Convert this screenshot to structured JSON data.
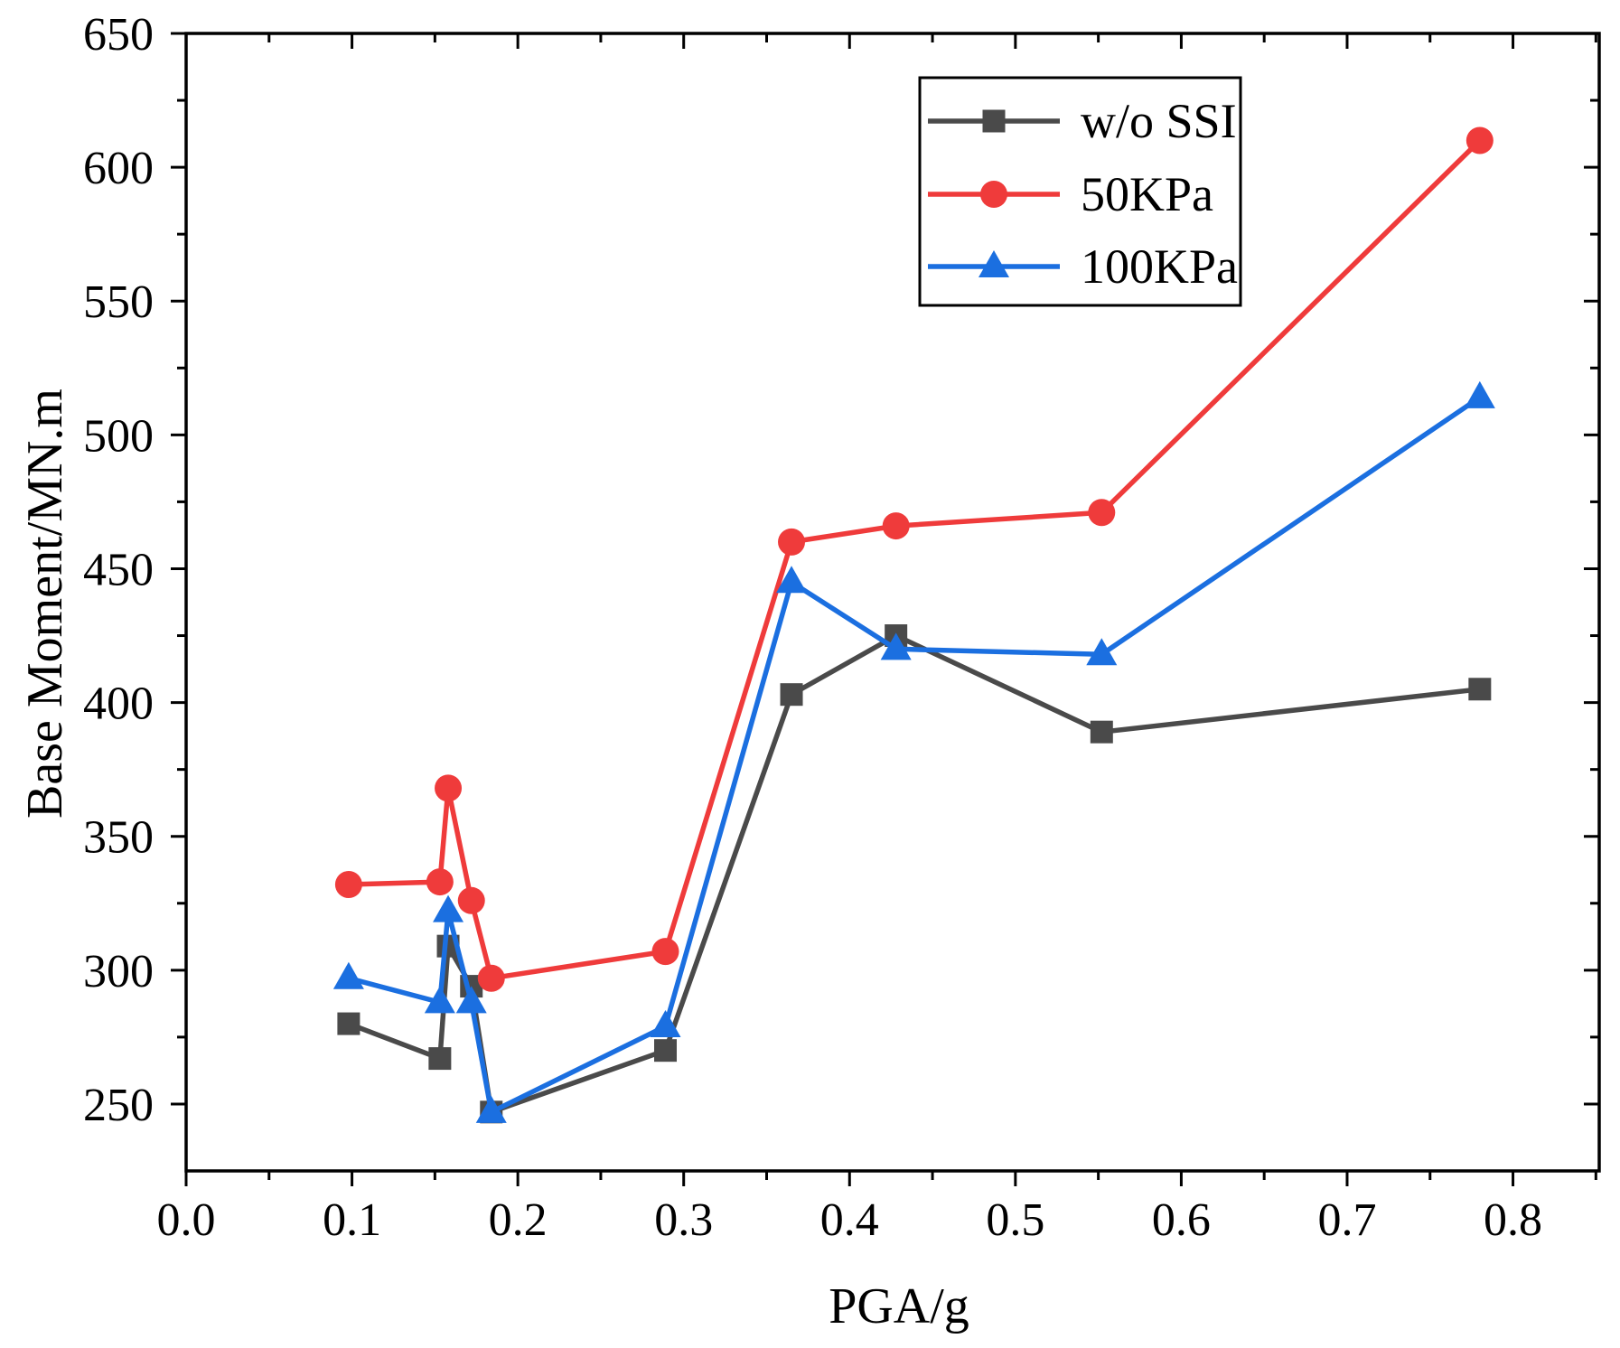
{
  "chart_data": {
    "type": "line",
    "xlabel": "PGA/g",
    "ylabel": "Base Moment/MN.m",
    "xlim": [
      0,
      0.852
    ],
    "ylim": [
      225,
      650
    ],
    "x_ticks": [
      "0.0",
      "0.1",
      "0.2",
      "0.3",
      "0.4",
      "0.5",
      "0.6",
      "0.7",
      "0.8"
    ],
    "y_ticks": [
      "250",
      "300",
      "350",
      "400",
      "450",
      "500",
      "550",
      "600",
      "650"
    ],
    "grid": false,
    "legend": "top-right",
    "x": [
      0.098,
      0.153,
      0.158,
      0.172,
      0.184,
      0.289,
      0.365,
      0.428,
      0.552,
      0.78
    ],
    "series": [
      {
        "name": "w/o SSI",
        "marker": "square",
        "color": "#4a4a4a",
        "values": [
          280,
          267,
          309,
          294,
          247,
          270,
          403,
          425,
          389,
          405
        ]
      },
      {
        "name": "50KPa",
        "marker": "circle",
        "color": "#ef3b3b",
        "values": [
          332,
          333,
          368,
          326,
          297,
          307,
          460,
          466,
          471,
          610
        ]
      },
      {
        "name": "100KPa",
        "marker": "triangle",
        "color": "#1b6fe0",
        "values": [
          297,
          288,
          322,
          288,
          247,
          279,
          445,
          420,
          418,
          514
        ]
      }
    ]
  }
}
